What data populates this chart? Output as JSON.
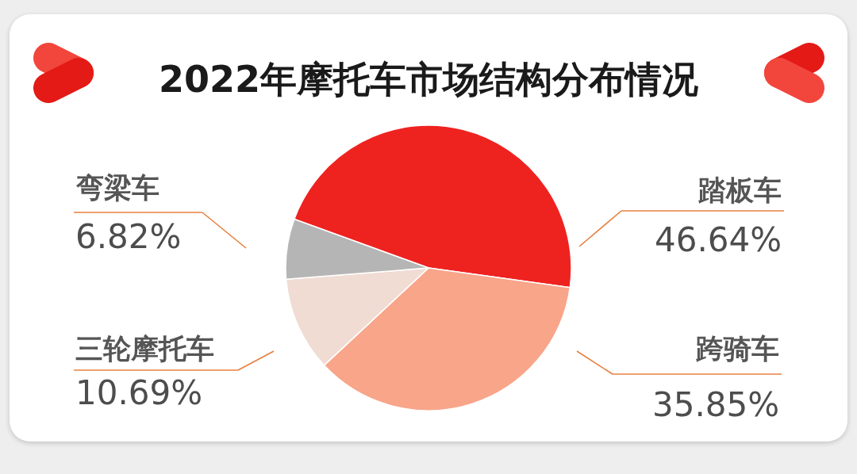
{
  "chart_data": {
    "type": "pie",
    "title": "2022年摩托车市场结构分布情况",
    "categories": [
      "踏板车",
      "跨骑车",
      "三轮摩托车",
      "弯梁车"
    ],
    "values": [
      46.64,
      35.85,
      10.69,
      6.82
    ],
    "colors": [
      "#ee2320",
      "#f8a58a",
      "#f0dcd3",
      "#b5b5b5"
    ],
    "value_labels": [
      "46.64%",
      "35.85%",
      "10.69%",
      "6.82%"
    ]
  }
}
